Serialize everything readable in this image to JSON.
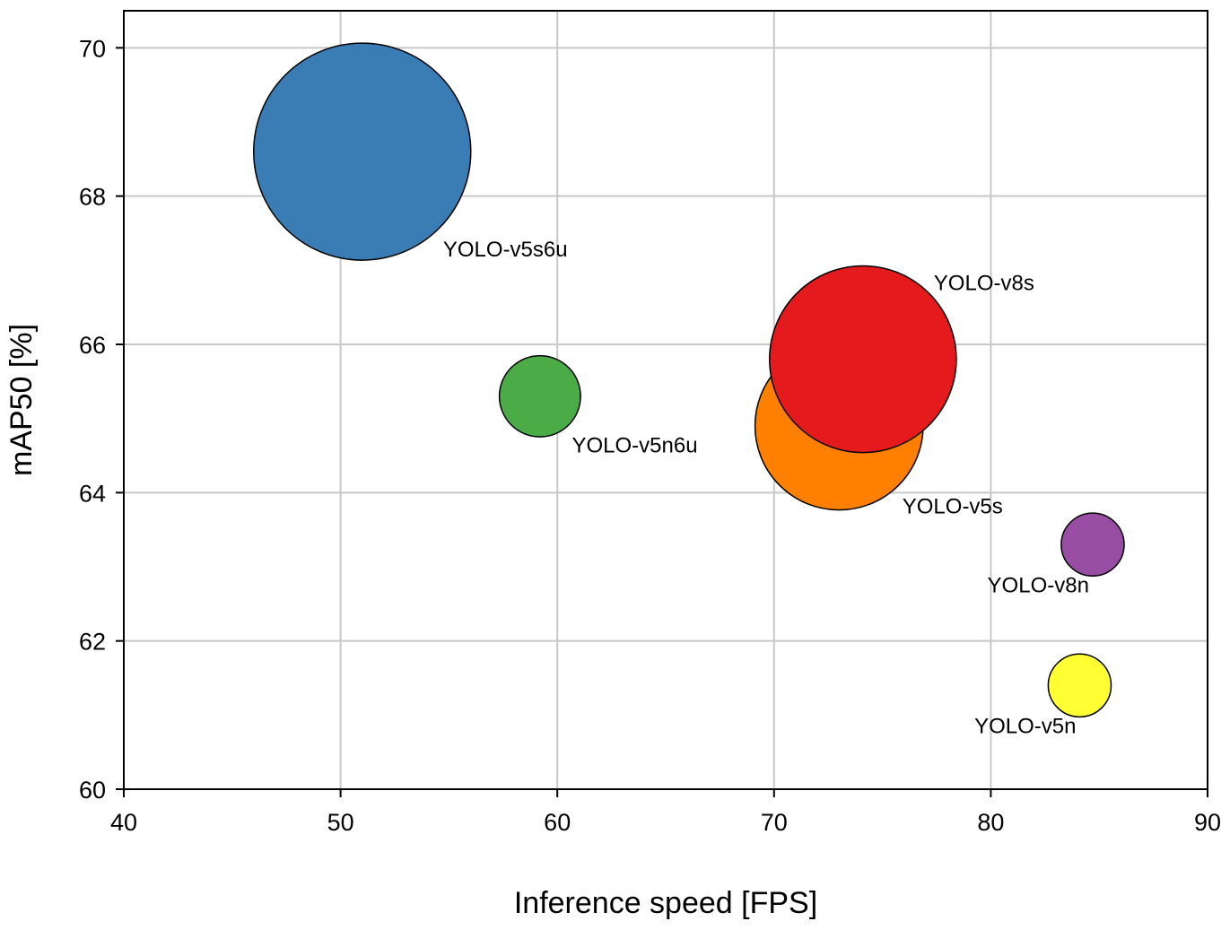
{
  "chart_data": {
    "type": "scatter",
    "xlabel": "Inference speed [FPS]",
    "ylabel": "mAP50 [%]",
    "xlim": [
      40,
      90
    ],
    "ylim": [
      60,
      70.5
    ],
    "xticks": [
      40,
      50,
      60,
      70,
      80,
      90
    ],
    "yticks": [
      60,
      62,
      64,
      66,
      68,
      70
    ],
    "grid": true,
    "points": [
      {
        "label": "YOLO-v5s6u",
        "x": 51.0,
        "y": 68.6,
        "size": 1.0,
        "color": "#3a7db5",
        "label_pos": "lower-right"
      },
      {
        "label": "YOLO-v5n6u",
        "x": 59.2,
        "y": 65.3,
        "size": 0.14,
        "color": "#4aab47",
        "label_pos": "lower-right"
      },
      {
        "label": "YOLO-v5s",
        "x": 73.0,
        "y": 64.9,
        "size": 0.6,
        "color": "#ff7f00",
        "label_pos": "lower-right"
      },
      {
        "label": "YOLO-v8s",
        "x": 74.1,
        "y": 65.8,
        "size": 0.74,
        "color": "#e41a1c",
        "label_pos": "upper-right"
      },
      {
        "label": "YOLO-v8n",
        "x": 84.7,
        "y": 63.3,
        "size": 0.084,
        "color": "#984ea3",
        "label_pos": "lower-left"
      },
      {
        "label": "YOLO-v5n",
        "x": 84.1,
        "y": 61.4,
        "size": 0.084,
        "color": "#ffff33",
        "label_pos": "lower-left"
      }
    ]
  }
}
